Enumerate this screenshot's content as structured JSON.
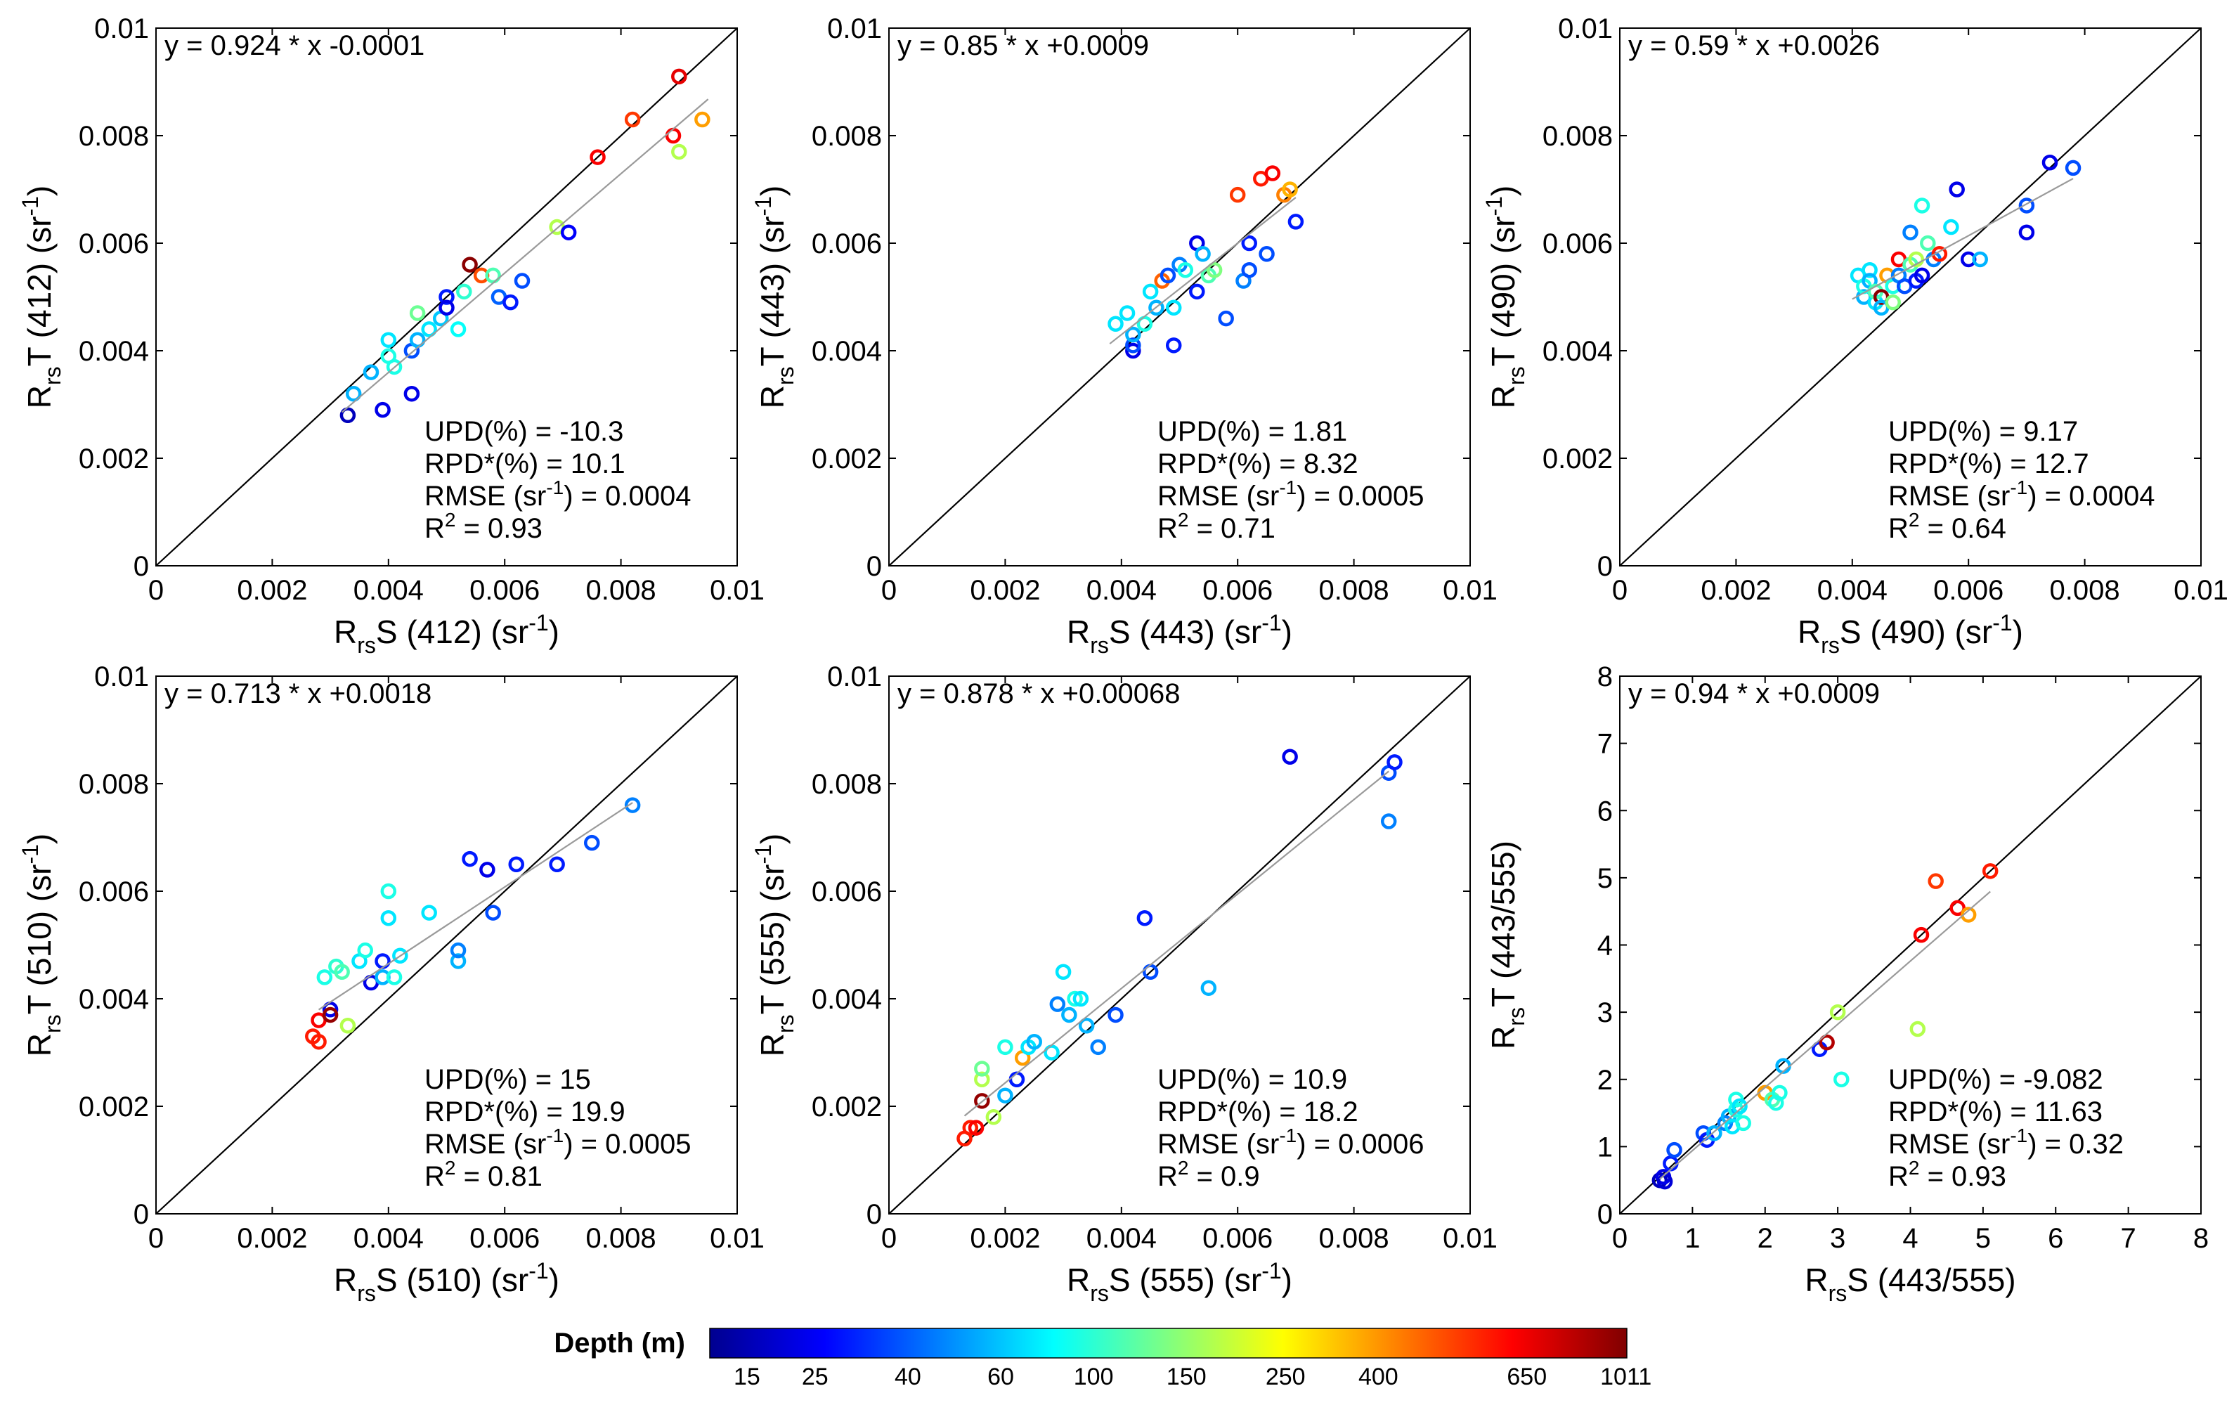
{
  "colorbar": {
    "title": "Depth (m)",
    "ticks": [
      "15",
      "25",
      "40",
      "60",
      "100",
      "150",
      "250",
      "400",
      "650",
      "1011"
    ],
    "colors": [
      "#00008f",
      "#0000ff",
      "#0080ff",
      "#00ffff",
      "#80ff80",
      "#ffff00",
      "#ff8000",
      "#ff0000",
      "#800000"
    ]
  },
  "chart_data": [
    {
      "type": "scatter",
      "equation": "y = 0.924 * x -0.0001",
      "stats": [
        "UPD(%) = -10.3",
        "RPD*(%) = 10.1",
        "RMSE (sr-1) = 0.0004",
        "R2 = 0.93"
      ],
      "ylabel": {
        "main": "R",
        "sub": "rs",
        "rest": "T (412) (sr",
        "sup": "-1",
        "close": ")"
      },
      "xlabel": {
        "main": "R",
        "sub": "rs",
        "rest": "S (412) (sr",
        "sup": "-1",
        "close": ")"
      },
      "xlim": [
        0,
        0.01
      ],
      "ylim": [
        0,
        0.01
      ],
      "xticks": [
        "0",
        "0.002",
        "0.004",
        "0.006",
        "0.008",
        "0.01"
      ],
      "yticks": [
        "0",
        "0.002",
        "0.004",
        "0.006",
        "0.008",
        "0.01"
      ],
      "fit": {
        "slope": 0.924,
        "intercept": -0.0001,
        "x_range": [
          0.0032,
          0.0095
        ]
      },
      "points": [
        [
          0.0033,
          0.0028,
          0.05
        ],
        [
          0.0034,
          0.0032,
          0.3
        ],
        [
          0.0037,
          0.0036,
          0.3
        ],
        [
          0.0039,
          0.0029,
          0.1
        ],
        [
          0.004,
          0.0039,
          0.4
        ],
        [
          0.004,
          0.0042,
          0.35
        ],
        [
          0.0041,
          0.0037,
          0.4
        ],
        [
          0.0044,
          0.0032,
          0.1
        ],
        [
          0.0044,
          0.004,
          0.2
        ],
        [
          0.0045,
          0.0042,
          0.3
        ],
        [
          0.0045,
          0.0047,
          0.48
        ],
        [
          0.0047,
          0.0044,
          0.35
        ],
        [
          0.0049,
          0.0046,
          0.32
        ],
        [
          0.005,
          0.005,
          0.15
        ],
        [
          0.005,
          0.0048,
          0.1
        ],
        [
          0.0052,
          0.0044,
          0.38
        ],
        [
          0.0053,
          0.0051,
          0.42
        ],
        [
          0.0054,
          0.0056,
          0.99
        ],
        [
          0.0056,
          0.0054,
          0.8
        ],
        [
          0.0058,
          0.0054,
          0.45
        ],
        [
          0.0059,
          0.005,
          0.22
        ],
        [
          0.0061,
          0.0049,
          0.15
        ],
        [
          0.0063,
          0.0053,
          0.2
        ],
        [
          0.0069,
          0.0063,
          0.55
        ],
        [
          0.0071,
          0.0062,
          0.12
        ],
        [
          0.0076,
          0.0076,
          0.88
        ],
        [
          0.0082,
          0.0083,
          0.82
        ],
        [
          0.0089,
          0.008,
          0.88
        ],
        [
          0.009,
          0.0077,
          0.55
        ],
        [
          0.009,
          0.0091,
          0.9
        ],
        [
          0.0094,
          0.0083,
          0.72
        ]
      ]
    },
    {
      "type": "scatter",
      "equation": "y = 0.85 * x +0.0009",
      "stats": [
        "UPD(%) = 1.81",
        "RPD*(%) = 8.32",
        "RMSE (sr-1) = 0.0005",
        "R2 = 0.71"
      ],
      "ylabel": {
        "main": "R",
        "sub": "rs",
        "rest": "T (443) (sr",
        "sup": "-1",
        "close": ")"
      },
      "xlabel": {
        "main": "R",
        "sub": "rs",
        "rest": "S (443) (sr",
        "sup": "-1",
        "close": ")"
      },
      "xlim": [
        0,
        0.01
      ],
      "ylim": [
        0,
        0.01
      ],
      "xticks": [
        "0",
        "0.002",
        "0.004",
        "0.006",
        "0.008",
        "0.01"
      ],
      "yticks": [
        "0",
        "0.002",
        "0.004",
        "0.006",
        "0.008",
        "0.01"
      ],
      "fit": {
        "slope": 0.85,
        "intercept": 0.0009,
        "x_range": [
          0.0038,
          0.007
        ]
      },
      "points": [
        [
          0.0039,
          0.0045,
          0.35
        ],
        [
          0.0041,
          0.0047,
          0.35
        ],
        [
          0.0042,
          0.004,
          0.1
        ],
        [
          0.0042,
          0.0041,
          0.2
        ],
        [
          0.0042,
          0.0043,
          0.3
        ],
        [
          0.0044,
          0.0045,
          0.4
        ],
        [
          0.0045,
          0.0051,
          0.35
        ],
        [
          0.0046,
          0.0048,
          0.3
        ],
        [
          0.0047,
          0.0053,
          0.78
        ],
        [
          0.0048,
          0.0054,
          0.2
        ],
        [
          0.0049,
          0.0048,
          0.35
        ],
        [
          0.0049,
          0.0041,
          0.15
        ],
        [
          0.005,
          0.0056,
          0.25
        ],
        [
          0.0051,
          0.0055,
          0.4
        ],
        [
          0.0053,
          0.006,
          0.1
        ],
        [
          0.0053,
          0.0051,
          0.15
        ],
        [
          0.0054,
          0.0058,
          0.3
        ],
        [
          0.0055,
          0.0054,
          0.45
        ],
        [
          0.0056,
          0.0055,
          0.5
        ],
        [
          0.0058,
          0.0046,
          0.2
        ],
        [
          0.006,
          0.0069,
          0.82
        ],
        [
          0.0061,
          0.0053,
          0.25
        ],
        [
          0.0062,
          0.0055,
          0.2
        ],
        [
          0.0062,
          0.006,
          0.15
        ],
        [
          0.0064,
          0.0072,
          0.85
        ],
        [
          0.0065,
          0.0058,
          0.2
        ],
        [
          0.0066,
          0.0073,
          0.88
        ],
        [
          0.0068,
          0.0069,
          0.75
        ],
        [
          0.0069,
          0.007,
          0.7
        ],
        [
          0.007,
          0.0064,
          0.15
        ]
      ]
    },
    {
      "type": "scatter",
      "equation": "y = 0.59 * x +0.0026",
      "stats": [
        "UPD(%) = 9.17",
        "RPD*(%) = 12.7",
        "RMSE (sr-1) = 0.0004",
        "R2 = 0.64"
      ],
      "ylabel": {
        "main": "R",
        "sub": "rs",
        "rest": "T (490) (sr",
        "sup": "-1",
        "close": ")"
      },
      "xlabel": {
        "main": "R",
        "sub": "rs",
        "rest": "S (490) (sr",
        "sup": "-1",
        "close": ")"
      },
      "xlim": [
        0,
        0.01
      ],
      "ylim": [
        0,
        0.01
      ],
      "xticks": [
        "0",
        "0.002",
        "0.004",
        "0.006",
        "0.008",
        "0.01"
      ],
      "yticks": [
        "0",
        "0.002",
        "0.004",
        "0.006",
        "0.008",
        "0.01"
      ],
      "fit": {
        "slope": 0.59,
        "intercept": 0.0026,
        "x_range": [
          0.004,
          0.0078
        ]
      },
      "points": [
        [
          0.0041,
          0.0054,
          0.35
        ],
        [
          0.0042,
          0.005,
          0.3
        ],
        [
          0.0042,
          0.0052,
          0.4
        ],
        [
          0.0043,
          0.0055,
          0.35
        ],
        [
          0.0043,
          0.0053,
          0.3
        ],
        [
          0.0044,
          0.0049,
          0.35
        ],
        [
          0.0044,
          0.0051,
          0.45
        ],
        [
          0.0045,
          0.005,
          0.99
        ],
        [
          0.0045,
          0.0048,
          0.3
        ],
        [
          0.0046,
          0.0054,
          0.72
        ],
        [
          0.0047,
          0.0052,
          0.4
        ],
        [
          0.0047,
          0.0049,
          0.5
        ],
        [
          0.0048,
          0.0057,
          0.88
        ],
        [
          0.0048,
          0.0054,
          0.25
        ],
        [
          0.0049,
          0.0052,
          0.2
        ],
        [
          0.005,
          0.0062,
          0.25
        ],
        [
          0.005,
          0.0056,
          0.45
        ],
        [
          0.0051,
          0.0057,
          0.55
        ],
        [
          0.0051,
          0.0053,
          0.15
        ],
        [
          0.0052,
          0.0067,
          0.4
        ],
        [
          0.0052,
          0.0054,
          0.1
        ],
        [
          0.0053,
          0.006,
          0.45
        ],
        [
          0.0054,
          0.0057,
          0.25
        ],
        [
          0.0055,
          0.0058,
          0.85
        ],
        [
          0.0057,
          0.0063,
          0.35
        ],
        [
          0.0058,
          0.007,
          0.1
        ],
        [
          0.006,
          0.0057,
          0.1
        ],
        [
          0.0062,
          0.0057,
          0.3
        ],
        [
          0.007,
          0.0067,
          0.2
        ],
        [
          0.007,
          0.0062,
          0.1
        ],
        [
          0.0074,
          0.0075,
          0.1
        ],
        [
          0.0078,
          0.0074,
          0.2
        ]
      ]
    },
    {
      "type": "scatter",
      "equation": "y = 0.713 * x +0.0018",
      "stats": [
        "UPD(%) = 15",
        "RPD*(%) = 19.9",
        "RMSE (sr-1) = 0.0005",
        "R2 = 0.81"
      ],
      "ylabel": {
        "main": "R",
        "sub": "rs",
        "rest": "T (510) (sr",
        "sup": "-1",
        "close": ")"
      },
      "xlabel": {
        "main": "R",
        "sub": "rs",
        "rest": "S (510) (sr",
        "sup": "-1",
        "close": ")"
      },
      "xlim": [
        0,
        0.01
      ],
      "ylim": [
        0,
        0.01
      ],
      "xticks": [
        "0",
        "0.002",
        "0.004",
        "0.006",
        "0.008",
        "0.01"
      ],
      "yticks": [
        "0",
        "0.002",
        "0.004",
        "0.006",
        "0.008",
        "0.01"
      ],
      "fit": {
        "slope": 0.713,
        "intercept": 0.0018,
        "x_range": [
          0.0028,
          0.0082
        ]
      },
      "points": [
        [
          0.0027,
          0.0033,
          0.85
        ],
        [
          0.0028,
          0.0032,
          0.85
        ],
        [
          0.0028,
          0.0036,
          0.88
        ],
        [
          0.0029,
          0.0044,
          0.4
        ],
        [
          0.003,
          0.0038,
          0.1
        ],
        [
          0.003,
          0.0037,
          0.98
        ],
        [
          0.0031,
          0.0046,
          0.42
        ],
        [
          0.0032,
          0.0045,
          0.45
        ],
        [
          0.0033,
          0.0035,
          0.55
        ],
        [
          0.0035,
          0.0047,
          0.35
        ],
        [
          0.0036,
          0.0049,
          0.4
        ],
        [
          0.0037,
          0.0043,
          0.1
        ],
        [
          0.0039,
          0.0047,
          0.15
        ],
        [
          0.0039,
          0.0044,
          0.3
        ],
        [
          0.004,
          0.006,
          0.4
        ],
        [
          0.004,
          0.0055,
          0.35
        ],
        [
          0.0041,
          0.0044,
          0.4
        ],
        [
          0.0042,
          0.0048,
          0.35
        ],
        [
          0.0047,
          0.0056,
          0.35
        ],
        [
          0.0052,
          0.0047,
          0.3
        ],
        [
          0.0052,
          0.0049,
          0.25
        ],
        [
          0.0054,
          0.0066,
          0.15
        ],
        [
          0.0057,
          0.0064,
          0.1
        ],
        [
          0.0058,
          0.0056,
          0.2
        ],
        [
          0.0062,
          0.0065,
          0.15
        ],
        [
          0.0069,
          0.0065,
          0.15
        ],
        [
          0.0075,
          0.0069,
          0.2
        ],
        [
          0.0082,
          0.0076,
          0.25
        ]
      ]
    },
    {
      "type": "scatter",
      "equation": "y = 0.878 * x +0.00068",
      "stats": [
        "UPD(%) = 10.9",
        "RPD*(%) = 18.2",
        "RMSE (sr-1) = 0.0006",
        "R2 = 0.9"
      ],
      "ylabel": {
        "main": "R",
        "sub": "rs",
        "rest": "T (555) (sr",
        "sup": "-1",
        "close": ")"
      },
      "xlabel": {
        "main": "R",
        "sub": "rs",
        "rest": "S (555) (sr",
        "sup": "-1",
        "close": ")"
      },
      "xlim": [
        0,
        0.01
      ],
      "ylim": [
        0,
        0.01
      ],
      "xticks": [
        "0",
        "0.002",
        "0.004",
        "0.006",
        "0.008",
        "0.01"
      ],
      "yticks": [
        "0",
        "0.002",
        "0.004",
        "0.006",
        "0.008",
        "0.01"
      ],
      "fit": {
        "slope": 0.878,
        "intercept": 0.00068,
        "x_range": [
          0.0013,
          0.0086
        ]
      },
      "points": [
        [
          0.0013,
          0.0014,
          0.85
        ],
        [
          0.0014,
          0.0016,
          0.85
        ],
        [
          0.0015,
          0.0016,
          0.88
        ],
        [
          0.0016,
          0.0021,
          0.98
        ],
        [
          0.0016,
          0.0025,
          0.55
        ],
        [
          0.0016,
          0.0027,
          0.48
        ],
        [
          0.0018,
          0.0018,
          0.55
        ],
        [
          0.002,
          0.0022,
          0.3
        ],
        [
          0.002,
          0.0031,
          0.4
        ],
        [
          0.0022,
          0.0025,
          0.15
        ],
        [
          0.0023,
          0.0029,
          0.72
        ],
        [
          0.0024,
          0.0031,
          0.35
        ],
        [
          0.0025,
          0.0032,
          0.3
        ],
        [
          0.0028,
          0.003,
          0.35
        ],
        [
          0.0029,
          0.0039,
          0.25
        ],
        [
          0.003,
          0.0045,
          0.35
        ],
        [
          0.0031,
          0.0037,
          0.3
        ],
        [
          0.0032,
          0.004,
          0.4
        ],
        [
          0.0033,
          0.004,
          0.35
        ],
        [
          0.0034,
          0.0035,
          0.3
        ],
        [
          0.0036,
          0.0031,
          0.25
        ],
        [
          0.0039,
          0.0037,
          0.2
        ],
        [
          0.0044,
          0.0055,
          0.15
        ],
        [
          0.0045,
          0.0045,
          0.2
        ],
        [
          0.0055,
          0.0042,
          0.3
        ],
        [
          0.0069,
          0.0085,
          0.1
        ],
        [
          0.0086,
          0.0082,
          0.2
        ],
        [
          0.0086,
          0.0073,
          0.25
        ],
        [
          0.0087,
          0.0084,
          0.15
        ]
      ]
    },
    {
      "type": "scatter",
      "equation": "y = 0.94 * x +0.0009",
      "stats": [
        "UPD(%) = -9.082",
        "RPD*(%) = 11.63",
        "RMSE (sr-1) = 0.32",
        "R2 = 0.93"
      ],
      "ylabel": {
        "main": "R",
        "sub": "rs",
        "rest": "T (443/555)",
        "sup": "",
        "close": ""
      },
      "xlabel": {
        "main": "R",
        "sub": "rs",
        "rest": "S (443/555)",
        "sup": "",
        "close": ""
      },
      "xlim": [
        0,
        8
      ],
      "ylim": [
        0,
        8
      ],
      "xticks": [
        "0",
        "1",
        "2",
        "3",
        "4",
        "5",
        "6",
        "7",
        "8"
      ],
      "yticks": [
        "0",
        "1",
        "2",
        "3",
        "4",
        "5",
        "6",
        "7",
        "8"
      ],
      "fit": {
        "slope": 0.94,
        "intercept": 0.0009,
        "x_range": [
          0.55,
          5.1
        ]
      },
      "points": [
        [
          0.55,
          0.5,
          0.05
        ],
        [
          0.6,
          0.55,
          0.1
        ],
        [
          0.62,
          0.48,
          0.08
        ],
        [
          0.7,
          0.75,
          0.15
        ],
        [
          0.75,
          0.95,
          0.2
        ],
        [
          1.15,
          1.2,
          0.2
        ],
        [
          1.2,
          1.1,
          0.15
        ],
        [
          1.3,
          1.2,
          0.3
        ],
        [
          1.45,
          1.35,
          0.25
        ],
        [
          1.5,
          1.45,
          0.3
        ],
        [
          1.55,
          1.3,
          0.35
        ],
        [
          1.6,
          1.55,
          0.4
        ],
        [
          1.6,
          1.7,
          0.4
        ],
        [
          1.65,
          1.6,
          0.35
        ],
        [
          1.7,
          1.35,
          0.4
        ],
        [
          2.0,
          1.8,
          0.72
        ],
        [
          2.1,
          1.7,
          0.45
        ],
        [
          2.15,
          1.65,
          0.4
        ],
        [
          2.2,
          1.8,
          0.4
        ],
        [
          2.25,
          2.2,
          0.3
        ],
        [
          2.75,
          2.45,
          0.15
        ],
        [
          2.85,
          2.55,
          0.95
        ],
        [
          3.0,
          3.0,
          0.55
        ],
        [
          3.05,
          2.0,
          0.4
        ],
        [
          4.1,
          2.75,
          0.55
        ],
        [
          4.15,
          4.15,
          0.88
        ],
        [
          4.35,
          4.95,
          0.82
        ],
        [
          4.65,
          4.55,
          0.88
        ],
        [
          4.8,
          4.45,
          0.72
        ],
        [
          5.1,
          5.1,
          0.85
        ]
      ]
    }
  ]
}
